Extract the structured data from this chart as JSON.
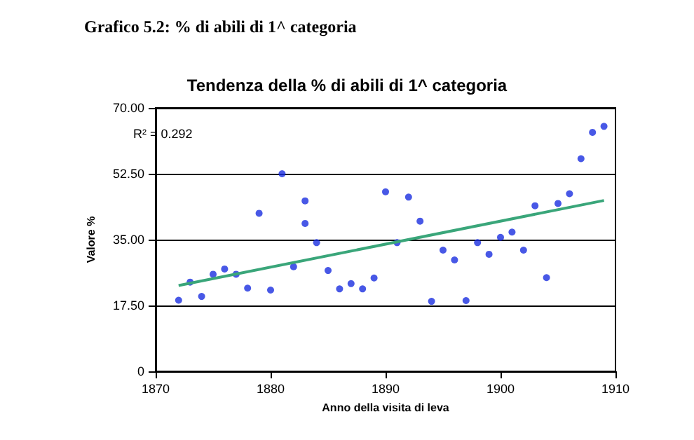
{
  "chart_data": {
    "type": "scatter",
    "title": "Grafico 5.2: % di abili di 1^ categoria",
    "subtitle": "Tendenza della % di abili di 1^ categoria",
    "xlabel": "Anno della visita di leva",
    "ylabel": "Valore %",
    "x": [
      1872,
      1873,
      1874,
      1875,
      1876,
      1877,
      1878,
      1879,
      1880,
      1881,
      1882,
      1883,
      1883,
      1884,
      1885,
      1886,
      1887,
      1888,
      1889,
      1890,
      1891,
      1892,
      1893,
      1894,
      1895,
      1896,
      1897,
      1898,
      1899,
      1900,
      1901,
      1902,
      1903,
      1904,
      1905,
      1906,
      1907,
      1908,
      1909
    ],
    "series": [
      {
        "color": "#1a2ee0",
        "marker": "circle",
        "values": [
          18.9,
          23.7,
          19.9,
          25.8,
          27.2,
          25.8,
          22.1,
          42.0,
          21.6,
          52.5,
          27.8,
          45.3,
          39.3,
          34.2,
          26.8,
          21.9,
          23.3,
          21.9,
          24.8,
          47.7,
          34.2,
          46.3,
          39.9,
          18.6,
          32.2,
          29.6,
          18.8,
          34.2,
          31.1,
          35.6,
          37.0,
          32.2,
          44.0,
          24.9,
          44.6,
          47.2,
          56.5,
          63.5,
          65.1
        ]
      },
      {
        "type": "line",
        "color": "#3aa67a",
        "marker": "none",
        "x": [
          1872,
          1909
        ],
        "values": [
          22.8,
          45.4
        ]
      }
    ],
    "xlim": [
      1870,
      1910
    ],
    "xticks": [
      1870,
      1880,
      1890,
      1900,
      1910
    ],
    "ylim": [
      0,
      70
    ],
    "yticks": [
      {
        "value": 0,
        "label": "0"
      },
      {
        "value": 17.5,
        "label": "17.50"
      },
      {
        "value": 35,
        "label": "35.00"
      },
      {
        "value": 52.5,
        "label": "52.50"
      },
      {
        "value": 70,
        "label": "70.00"
      }
    ],
    "grid": "y",
    "annotations": [
      "R² = 0.292"
    ]
  }
}
